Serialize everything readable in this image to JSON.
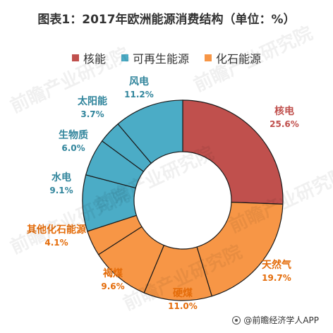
{
  "chart_data": {
    "type": "pie",
    "title": "图表1：2017年欧洲能源消费结构（单位：%）",
    "legend": {
      "placement": "top",
      "entries": [
        {
          "name": "核能",
          "color": "#c0504d"
        },
        {
          "name": "可再生能源",
          "color": "#4bacc6"
        },
        {
          "name": "化石能源",
          "color": "#f79646"
        }
      ]
    },
    "slices": [
      {
        "label": "核电",
        "value": 25.6,
        "value_text": "25.6%",
        "group": "核能",
        "color": "#c0504d"
      },
      {
        "label": "天然气",
        "value": 19.7,
        "value_text": "19.7%",
        "group": "化石能源",
        "color": "#f79646"
      },
      {
        "label": "硬煤",
        "value": 11.0,
        "value_text": "11.0%",
        "group": "化石能源",
        "color": "#f79646"
      },
      {
        "label": "褐煤",
        "value": 9.6,
        "value_text": "9.6%",
        "group": "化石能源",
        "color": "#f79646"
      },
      {
        "label": "其他化石能源",
        "value": 4.1,
        "value_text": "4.1%",
        "group": "化石能源",
        "color": "#f79646"
      },
      {
        "label": "水电",
        "value": 9.1,
        "value_text": "9.1%",
        "group": "可再生能源",
        "color": "#4bacc6"
      },
      {
        "label": "生物质",
        "value": 6.0,
        "value_text": "6.0%",
        "group": "可再生能源",
        "color": "#4bacc6"
      },
      {
        "label": "太阳能",
        "value": 3.7,
        "value_text": "3.7%",
        "group": "可再生能源",
        "color": "#4bacc6"
      },
      {
        "label": "风电",
        "value": 11.2,
        "value_text": "11.2%",
        "group": "可再生能源",
        "color": "#4bacc6"
      }
    ],
    "label_colors": {
      "核能": "#c0504d",
      "可再生能源": "#31859c",
      "化石能源": "#e46c0a"
    }
  },
  "watermark": {
    "text": "前瞻产业研究院"
  },
  "source": {
    "text": "@前瞻经济学人APP"
  }
}
